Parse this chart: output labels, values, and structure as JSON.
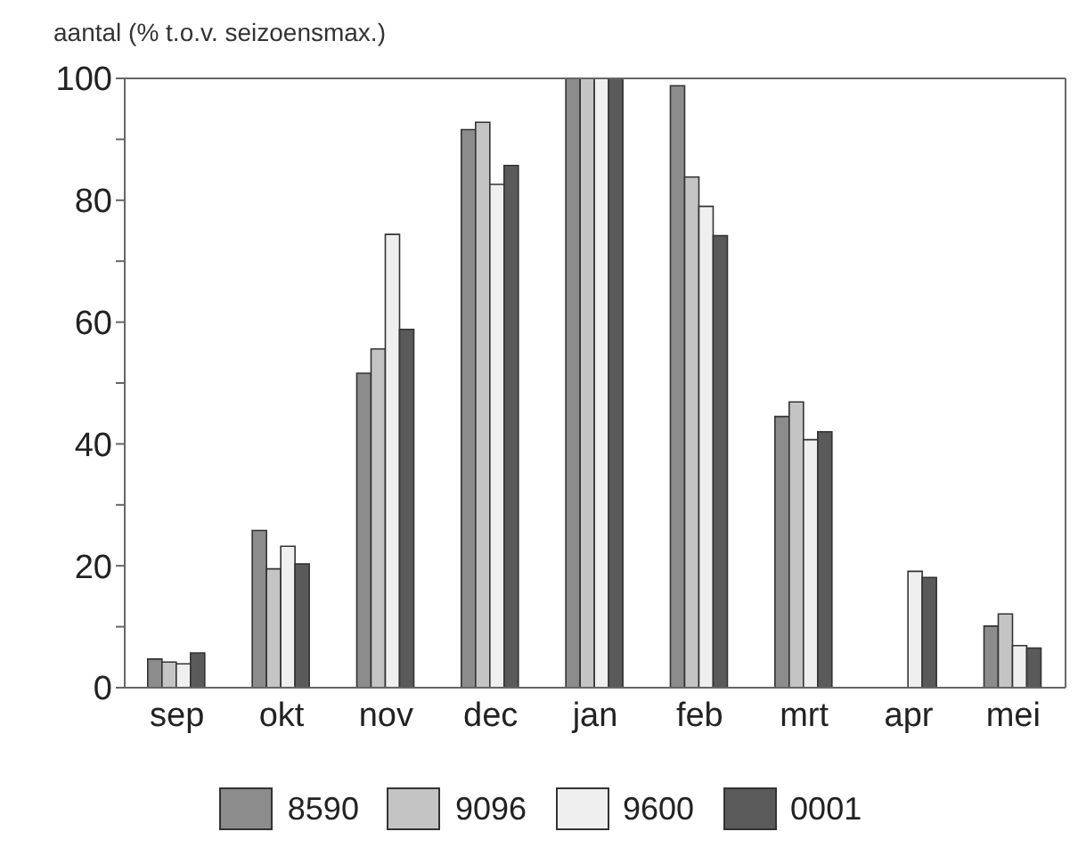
{
  "chart_data": {
    "type": "bar",
    "ylabel": "aantal  (% t.o.v. seizoensmax.)",
    "categories": [
      "sep",
      "okt",
      "nov",
      "dec",
      "jan",
      "feb",
      "mrt",
      "apr",
      "mei"
    ],
    "series": [
      {
        "name": "8590",
        "color": "#8c8c8c",
        "values": [
          4.7,
          25.8,
          51.6,
          91.6,
          100,
          98.8,
          44.5,
          null,
          10.1
        ]
      },
      {
        "name": "9096",
        "color": "#c4c4c4",
        "values": [
          4.2,
          19.5,
          55.6,
          92.8,
          100,
          83.8,
          46.9,
          null,
          12.1
        ]
      },
      {
        "name": "9600",
        "color": "#efefef",
        "values": [
          3.9,
          23.2,
          74.4,
          82.6,
          100,
          79.0,
          40.7,
          19.1,
          6.9
        ]
      },
      {
        "name": "0001",
        "color": "#5a5a5a",
        "values": [
          5.7,
          20.3,
          58.8,
          85.7,
          100,
          74.2,
          42.0,
          18.1,
          6.5
        ]
      }
    ],
    "ylim": [
      0,
      100
    ],
    "yticks": [
      0,
      {
        "value": 10,
        "label": null
      },
      20,
      {
        "value": 30,
        "label": null
      },
      40,
      {
        "value": 50,
        "label": null
      },
      60,
      {
        "value": 70,
        "label": null
      },
      80,
      {
        "value": 90,
        "label": null
      },
      100
    ],
    "grid": false,
    "legend": "bottom"
  }
}
